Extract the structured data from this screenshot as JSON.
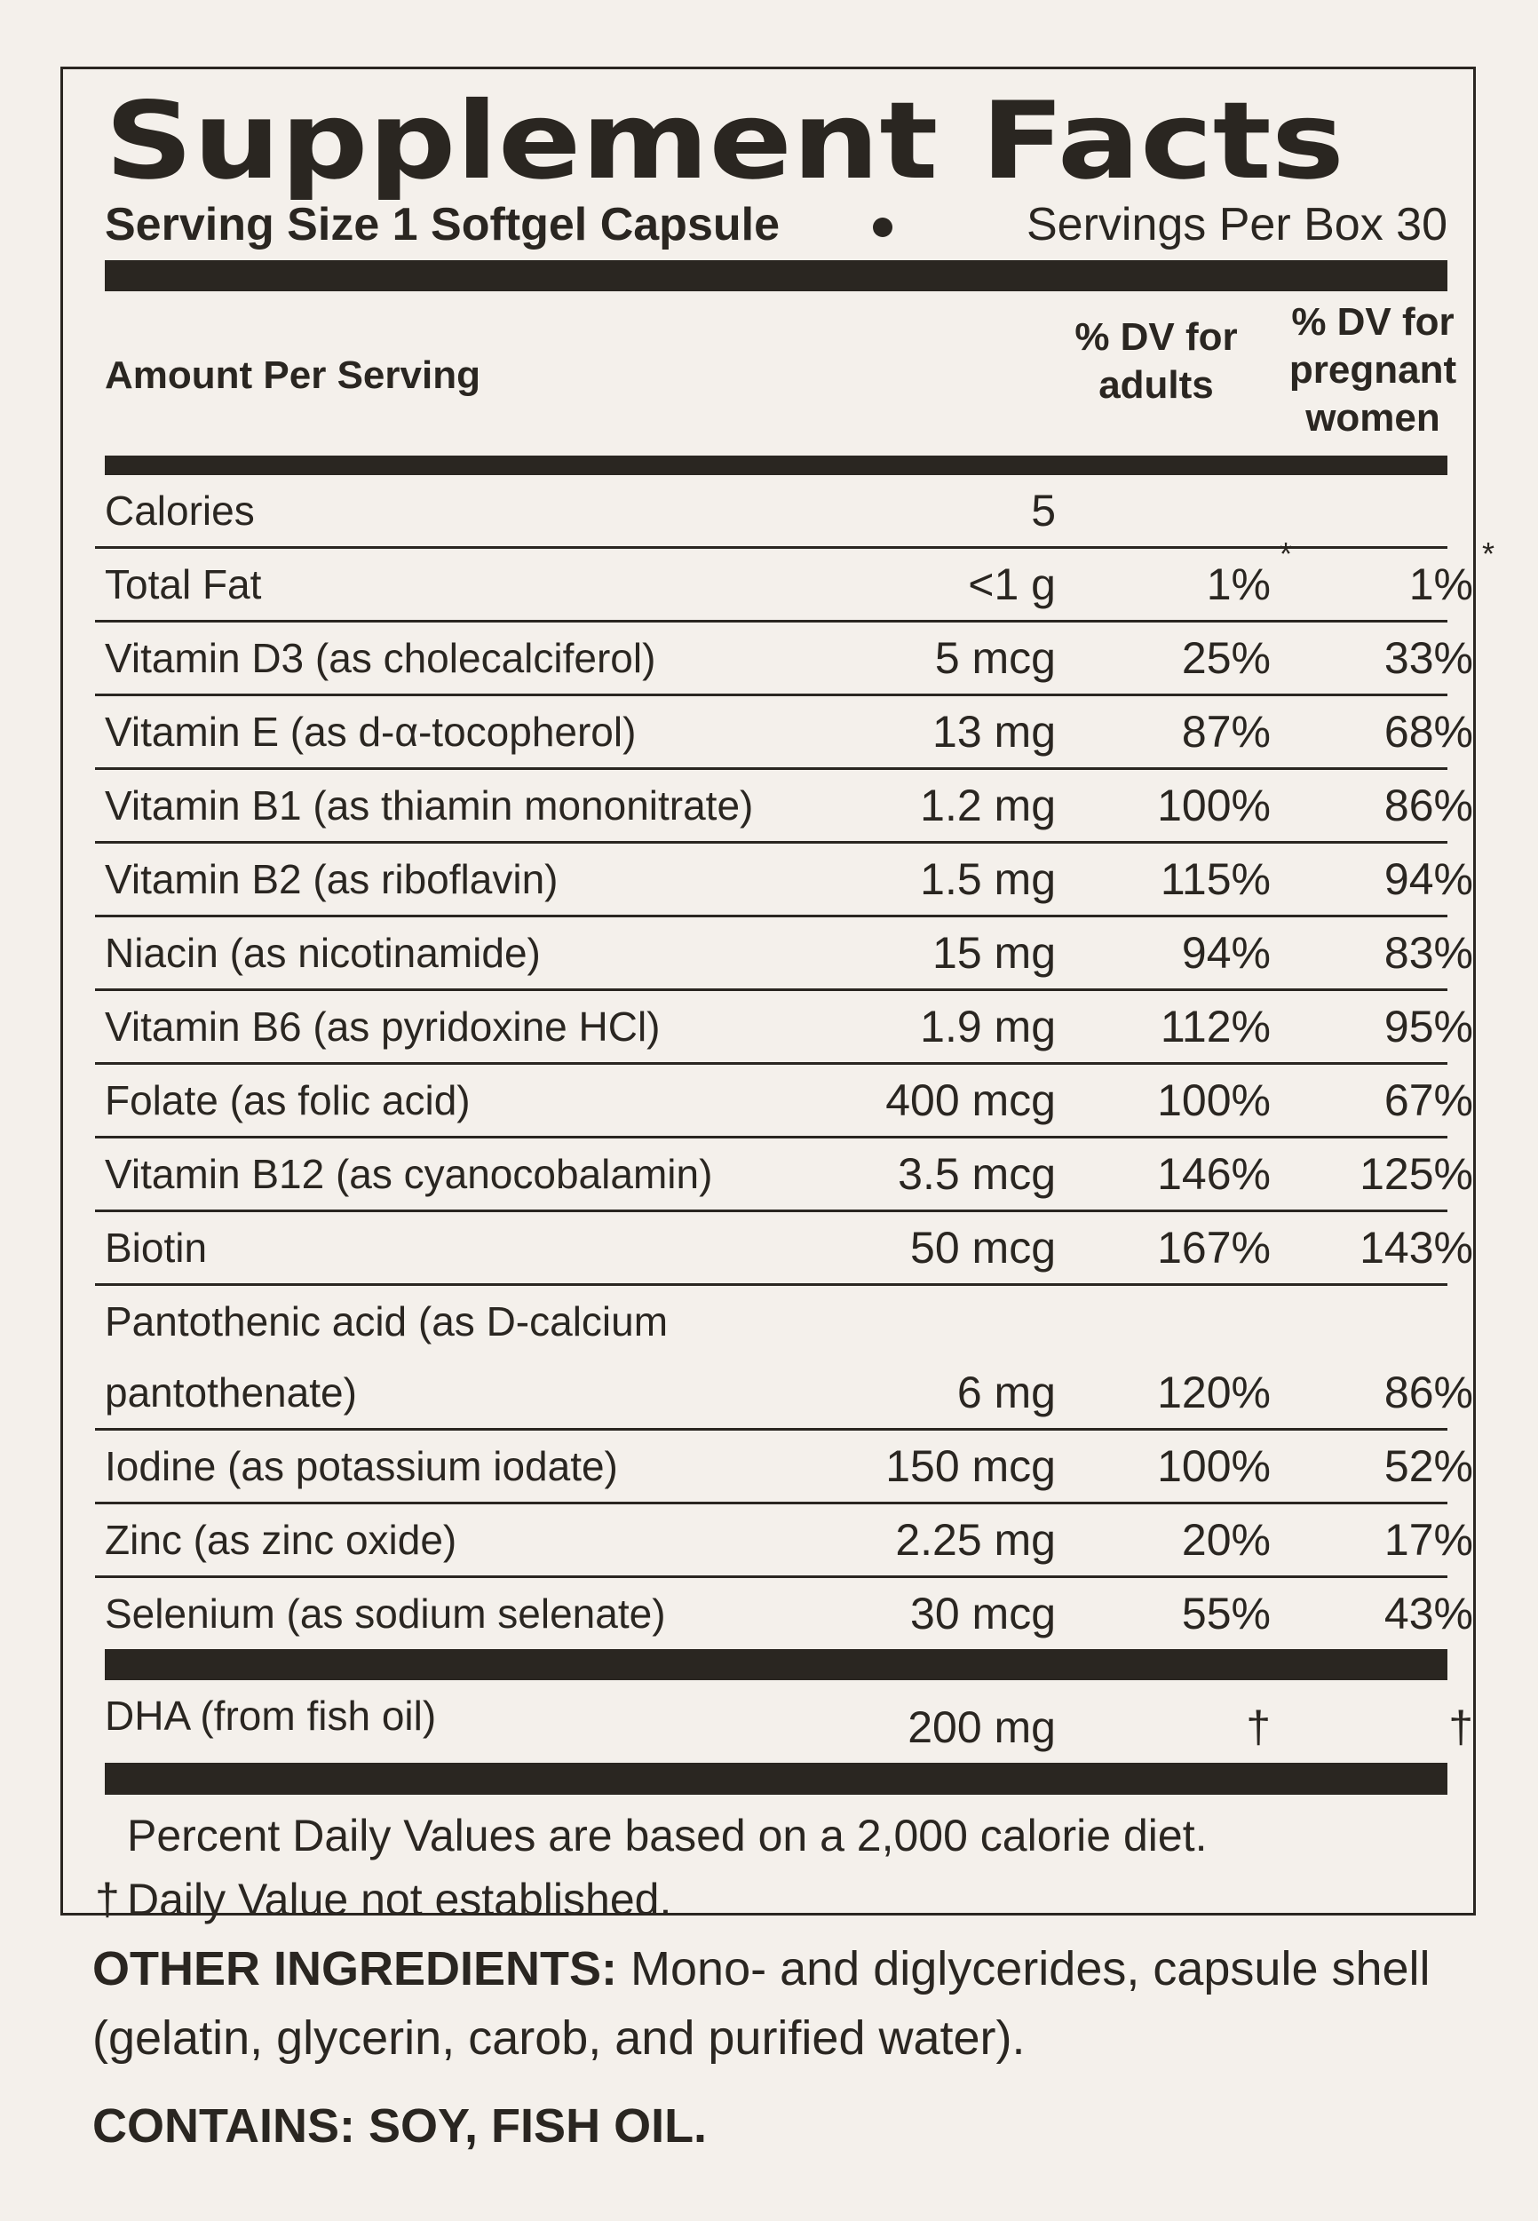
{
  "header": {
    "title": "Supplement Facts",
    "serving_size": "Serving Size 1 Softgel Capsule",
    "servings_per_box": "Servings Per Box 30"
  },
  "columns": {
    "amount_per_serving": "Amount Per Serving",
    "dv_adults": [
      "% DV for",
      "adults"
    ],
    "dv_pregnant": [
      "% DV for",
      "pregnant",
      "women"
    ]
  },
  "rows": [
    {
      "name": "Calories",
      "amount": "5"
    },
    {
      "name": "Total Fat",
      "amount": "<1 g",
      "dv_adults": "1%",
      "dv_adults_note": "*",
      "dv_pregnant": "1%",
      "dv_pregnant_note": "*"
    },
    {
      "name": "Vitamin D3 (as cholecalciferol)",
      "amount": "5 mcg",
      "dv_adults": "25%",
      "dv_pregnant": "33%"
    },
    {
      "name": "Vitamin E (as d-α-tocopherol)",
      "amount": "13 mg",
      "dv_adults": "87%",
      "dv_pregnant": "68%"
    },
    {
      "name": "Vitamin B1 (as thiamin mononitrate)",
      "amount": "1.2 mg",
      "dv_adults": "100%",
      "dv_pregnant": "86%"
    },
    {
      "name": "Vitamin B2 (as riboflavin)",
      "amount": "1.5 mg",
      "dv_adults": "115%",
      "dv_pregnant": "94%"
    },
    {
      "name": "Niacin (as nicotinamide)",
      "amount": "15 mg",
      "dv_adults": "94%",
      "dv_pregnant": "83%"
    },
    {
      "name": "Vitamin B6 (as pyridoxine HCl)",
      "amount": "1.9 mg",
      "dv_adults": "112%",
      "dv_pregnant": "95%"
    },
    {
      "name": "Folate (as folic acid)",
      "amount": "400 mcg",
      "dv_adults": "100%",
      "dv_pregnant": "67%"
    },
    {
      "name": "Vitamin B12 (as cyanocobalamin)",
      "amount": "3.5 mcg",
      "dv_adults": "146%",
      "dv_pregnant": "125%"
    },
    {
      "name": "Biotin",
      "amount": "50 mcg",
      "dv_adults": "167%",
      "dv_pregnant": "143%"
    },
    {
      "name": "Pantothenic acid (as D-calcium pantothenate)",
      "amount": "6 mg",
      "dv_adults": "120%",
      "dv_pregnant": "86%"
    },
    {
      "name": "Iodine (as potassium iodate)",
      "amount": "150 mcg",
      "dv_adults": "100%",
      "dv_pregnant": "52%"
    },
    {
      "name": "Zinc (as zinc oxide)",
      "amount": "2.25 mg",
      "dv_adults": "20%",
      "dv_pregnant": "17%"
    },
    {
      "name": "Selenium (as sodium selenate)",
      "amount": "30 mcg",
      "dv_adults": "55%",
      "dv_pregnant": "43%"
    }
  ],
  "other_rows": [
    {
      "name": "DHA (from fish oil)",
      "amount": "200 mg",
      "dv_adults": "†",
      "dv_pregnant": "†"
    }
  ],
  "footnotes": [
    {
      "text": "Percent Daily Values are based on a 2,000 calorie diet."
    },
    {
      "symbol": "†",
      "text": "Daily Value not established."
    }
  ],
  "other_ingredients": {
    "label": "OTHER INGREDIENTS:",
    "text": "Mono- and diglycerides, capsule shell (gelatin, glycerin, carob, and purified water)."
  },
  "contains": {
    "label": "CONTAINS:",
    "text": "SOY, FISH OIL."
  }
}
